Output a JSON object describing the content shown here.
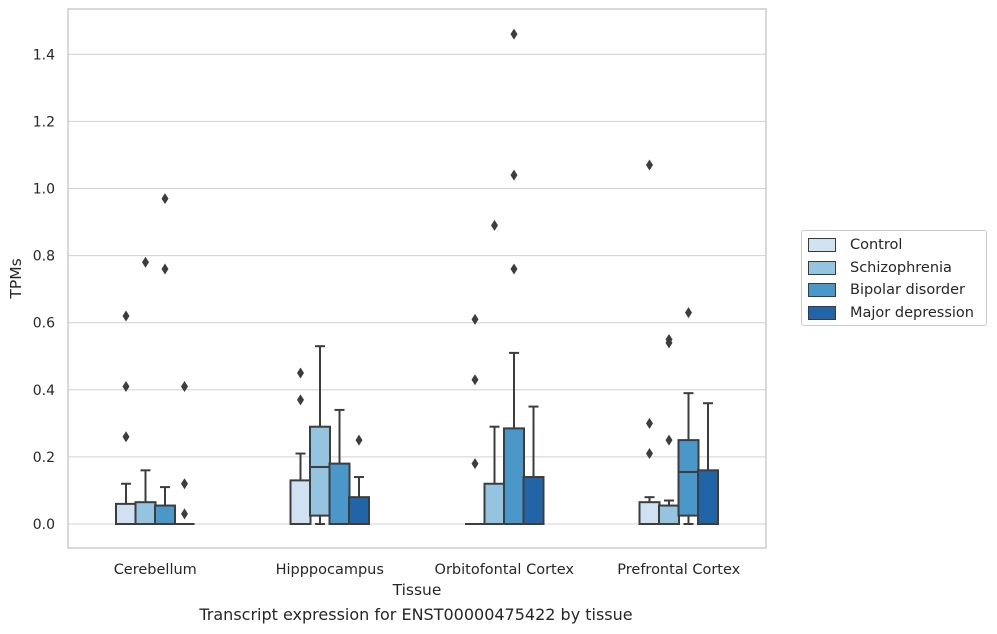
{
  "chart_data": {
    "type": "box",
    "xlabel": "Tissue",
    "ylabel": "TPMs",
    "caption": "Transcript expression for ENST00000475422 by tissue",
    "ylim": [
      -0.07,
      1.54
    ],
    "yticks": [
      "0.0",
      "0.2",
      "0.4",
      "0.6",
      "0.8",
      "1.0",
      "1.2",
      "1.4"
    ],
    "grid": true,
    "legend_position": "right",
    "categories": [
      "Cerebellum",
      "Hipppocampus",
      "Orbitofontal Cortex",
      "Prefrontal Cortex"
    ],
    "series": [
      {
        "name": "Control",
        "color": "#d0e1f2",
        "boxes": [
          {
            "low": 0.0,
            "q1": 0.0,
            "median": 0.0,
            "q3": 0.06,
            "high": 0.12,
            "outliers": [
              0.26,
              0.41,
              0.62
            ]
          },
          {
            "low": 0.0,
            "q1": 0.0,
            "median": 0.0,
            "q3": 0.13,
            "high": 0.21,
            "outliers": [
              0.37,
              0.45
            ]
          },
          {
            "low": 0.0,
            "q1": 0.0,
            "median": 0.0,
            "q3": 0.0,
            "high": 0.0,
            "outliers": [
              0.18,
              0.43,
              0.61
            ]
          },
          {
            "low": 0.0,
            "q1": 0.0,
            "median": 0.0,
            "q3": 0.065,
            "high": 0.08,
            "outliers": [
              0.21,
              0.3,
              1.07
            ]
          }
        ]
      },
      {
        "name": "Schizophrenia",
        "color": "#94c4df",
        "boxes": [
          {
            "low": 0.0,
            "q1": 0.0,
            "median": 0.0,
            "q3": 0.065,
            "high": 0.16,
            "outliers": [
              0.78
            ]
          },
          {
            "low": 0.0,
            "q1": 0.025,
            "median": 0.17,
            "q3": 0.29,
            "high": 0.53,
            "outliers": []
          },
          {
            "low": 0.0,
            "q1": 0.0,
            "median": 0.0,
            "q3": 0.12,
            "high": 0.29,
            "outliers": [
              0.89
            ]
          },
          {
            "low": 0.0,
            "q1": 0.0,
            "median": 0.0,
            "q3": 0.055,
            "high": 0.07,
            "outliers": [
              0.25,
              0.54,
              0.55
            ]
          }
        ]
      },
      {
        "name": "Bipolar disorder",
        "color": "#4a98c9",
        "boxes": [
          {
            "low": 0.0,
            "q1": 0.0,
            "median": 0.0,
            "q3": 0.055,
            "high": 0.11,
            "outliers": [
              0.76,
              0.97
            ]
          },
          {
            "low": 0.0,
            "q1": 0.0,
            "median": 0.0,
            "q3": 0.18,
            "high": 0.34,
            "outliers": []
          },
          {
            "low": 0.0,
            "q1": 0.0,
            "median": 0.0,
            "q3": 0.285,
            "high": 0.51,
            "outliers": [
              0.76,
              1.04,
              1.46
            ]
          },
          {
            "low": 0.0,
            "q1": 0.025,
            "median": 0.155,
            "q3": 0.25,
            "high": 0.39,
            "outliers": [
              0.63
            ]
          }
        ]
      },
      {
        "name": "Major depression",
        "color": "#2165a8",
        "boxes": [
          {
            "low": 0.0,
            "q1": 0.0,
            "median": 0.0,
            "q3": 0.0,
            "high": 0.0,
            "outliers": [
              0.03,
              0.12,
              0.41
            ]
          },
          {
            "low": 0.0,
            "q1": 0.0,
            "median": 0.0,
            "q3": 0.08,
            "high": 0.14,
            "outliers": [
              0.25
            ]
          },
          {
            "low": 0.0,
            "q1": 0.0,
            "median": 0.0,
            "q3": 0.14,
            "high": 0.35,
            "outliers": []
          },
          {
            "low": 0.0,
            "q1": 0.0,
            "median": 0.0,
            "q3": 0.16,
            "high": 0.36,
            "outliers": []
          }
        ]
      }
    ]
  }
}
